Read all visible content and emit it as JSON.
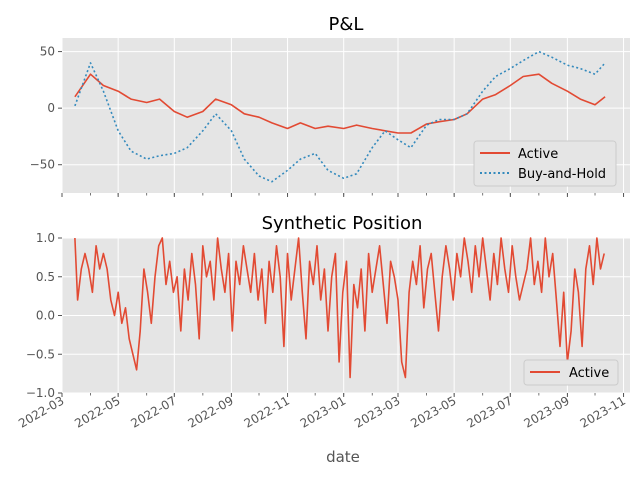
{
  "colors": {
    "active": "#e24a33",
    "buy_and_hold": "#348abd",
    "panel_bg": "#e5e5e5",
    "grid": "#ffffff"
  },
  "chart_data": [
    {
      "type": "line",
      "title": "P&L",
      "xlabel": "",
      "ylabel": "",
      "ylim": [
        -75,
        62
      ],
      "yticks": [
        -50,
        0,
        50
      ],
      "grid": true,
      "legend_position": "lower-right",
      "x": [
        "2022-03-15",
        "2022-04-01",
        "2022-04-15",
        "2022-05-01",
        "2022-05-15",
        "2022-06-01",
        "2022-06-15",
        "2022-07-01",
        "2022-07-15",
        "2022-08-01",
        "2022-08-15",
        "2022-09-01",
        "2022-09-15",
        "2022-10-01",
        "2022-10-15",
        "2022-11-01",
        "2022-11-15",
        "2022-12-01",
        "2022-12-15",
        "2023-01-01",
        "2023-01-15",
        "2023-02-01",
        "2023-02-15",
        "2023-03-01",
        "2023-03-15",
        "2023-04-01",
        "2023-04-15",
        "2023-05-01",
        "2023-05-15",
        "2023-06-01",
        "2023-06-15",
        "2023-07-01",
        "2023-07-15",
        "2023-08-01",
        "2023-08-15",
        "2023-09-01",
        "2023-09-15",
        "2023-10-01",
        "2023-10-12"
      ],
      "series": [
        {
          "name": "Active",
          "style": "solid",
          "values": [
            10,
            30,
            20,
            15,
            8,
            5,
            8,
            -3,
            -8,
            -3,
            8,
            3,
            -5,
            -8,
            -13,
            -18,
            -13,
            -18,
            -16,
            -18,
            -15,
            -18,
            -20,
            -22,
            -22,
            -14,
            -12,
            -10,
            -5,
            8,
            12,
            20,
            28,
            30,
            22,
            15,
            8,
            3,
            10
          ]
        },
        {
          "name": "Buy-and-Hold",
          "style": "dotted",
          "values": [
            2,
            40,
            15,
            -20,
            -38,
            -45,
            -42,
            -40,
            -35,
            -20,
            -5,
            -20,
            -45,
            -60,
            -65,
            -55,
            -45,
            -40,
            -55,
            -62,
            -58,
            -35,
            -20,
            -28,
            -35,
            -15,
            -10,
            -10,
            -5,
            15,
            28,
            35,
            42,
            50,
            45,
            38,
            35,
            30,
            40
          ]
        }
      ]
    },
    {
      "type": "line",
      "title": "Synthetic Position",
      "xlabel": "date",
      "ylabel": "",
      "ylim": [
        -1.0,
        1.0
      ],
      "yticks": [
        -1.0,
        -0.5,
        0.0,
        0.5,
        1.0
      ],
      "xticks": [
        "2022-03",
        "2022-05",
        "2022-07",
        "2022-09",
        "2022-11",
        "2023-01",
        "2023-03",
        "2023-05",
        "2023-07",
        "2023-09",
        "2023-11"
      ],
      "grid": true,
      "legend_position": "lower-right",
      "series": [
        {
          "name": "Active",
          "style": "solid",
          "x": [
            "2022-03-15",
            "2022-03-18",
            "2022-03-22",
            "2022-03-26",
            "2022-03-30",
            "2022-04-03",
            "2022-04-07",
            "2022-04-11",
            "2022-04-15",
            "2022-04-19",
            "2022-04-23",
            "2022-04-27",
            "2022-05-01",
            "2022-05-05",
            "2022-05-09",
            "2022-05-13",
            "2022-05-17",
            "2022-05-21",
            "2022-05-25",
            "2022-05-29",
            "2022-06-02",
            "2022-06-06",
            "2022-06-10",
            "2022-06-14",
            "2022-06-18",
            "2022-06-22",
            "2022-06-26",
            "2022-06-30",
            "2022-07-04",
            "2022-07-08",
            "2022-07-12",
            "2022-07-16",
            "2022-07-20",
            "2022-07-24",
            "2022-07-28",
            "2022-08-01",
            "2022-08-05",
            "2022-08-09",
            "2022-08-13",
            "2022-08-17",
            "2022-08-21",
            "2022-08-25",
            "2022-08-29",
            "2022-09-02",
            "2022-09-06",
            "2022-09-10",
            "2022-09-14",
            "2022-09-18",
            "2022-09-22",
            "2022-09-26",
            "2022-09-30",
            "2022-10-04",
            "2022-10-08",
            "2022-10-12",
            "2022-10-16",
            "2022-10-20",
            "2022-10-24",
            "2022-10-28",
            "2022-11-01",
            "2022-11-05",
            "2022-11-09",
            "2022-11-13",
            "2022-11-17",
            "2022-11-21",
            "2022-11-25",
            "2022-11-29",
            "2022-12-03",
            "2022-12-07",
            "2022-12-11",
            "2022-12-15",
            "2022-12-19",
            "2022-12-23",
            "2022-12-27",
            "2022-12-31",
            "2023-01-04",
            "2023-01-08",
            "2023-01-12",
            "2023-01-16",
            "2023-01-20",
            "2023-01-24",
            "2023-01-28",
            "2023-02-01",
            "2023-02-05",
            "2023-02-09",
            "2023-02-13",
            "2023-02-17",
            "2023-02-21",
            "2023-02-25",
            "2023-03-01",
            "2023-03-05",
            "2023-03-09",
            "2023-03-13",
            "2023-03-17",
            "2023-03-21",
            "2023-03-25",
            "2023-03-29",
            "2023-04-02",
            "2023-04-06",
            "2023-04-10",
            "2023-04-14",
            "2023-04-18",
            "2023-04-22",
            "2023-04-26",
            "2023-04-30",
            "2023-05-04",
            "2023-05-08",
            "2023-05-12",
            "2023-05-16",
            "2023-05-20",
            "2023-05-24",
            "2023-05-28",
            "2023-06-01",
            "2023-06-05",
            "2023-06-09",
            "2023-06-13",
            "2023-06-17",
            "2023-06-21",
            "2023-06-25",
            "2023-06-29",
            "2023-07-03",
            "2023-07-07",
            "2023-07-11",
            "2023-07-15",
            "2023-07-19",
            "2023-07-23",
            "2023-07-27",
            "2023-07-31",
            "2023-08-04",
            "2023-08-08",
            "2023-08-12",
            "2023-08-16",
            "2023-08-20",
            "2023-08-24",
            "2023-08-28",
            "2023-09-01",
            "2023-09-05",
            "2023-09-09",
            "2023-09-13",
            "2023-09-17",
            "2023-09-21",
            "2023-09-25",
            "2023-09-29",
            "2023-10-03",
            "2023-10-07",
            "2023-10-11"
          ],
          "values": [
            1.0,
            0.2,
            0.6,
            0.8,
            0.6,
            0.3,
            0.9,
            0.6,
            0.8,
            0.6,
            0.2,
            0.0,
            0.3,
            -0.1,
            0.1,
            -0.3,
            -0.5,
            -0.7,
            -0.2,
            0.6,
            0.3,
            -0.1,
            0.5,
            0.9,
            1.0,
            0.4,
            0.7,
            0.3,
            0.5,
            -0.2,
            0.6,
            0.2,
            0.8,
            0.4,
            -0.3,
            0.9,
            0.5,
            0.7,
            0.2,
            1.0,
            0.6,
            0.3,
            0.8,
            -0.2,
            0.7,
            0.4,
            0.9,
            0.6,
            0.3,
            0.8,
            0.2,
            0.6,
            -0.1,
            0.7,
            0.3,
            0.9,
            0.5,
            -0.4,
            0.8,
            0.2,
            0.6,
            1.0,
            0.3,
            -0.3,
            0.7,
            0.4,
            0.9,
            0.2,
            0.6,
            -0.2,
            0.5,
            0.8,
            -0.6,
            0.3,
            0.7,
            -0.8,
            0.4,
            0.1,
            0.6,
            -0.2,
            0.8,
            0.3,
            0.6,
            0.9,
            0.4,
            -0.1,
            0.7,
            0.5,
            0.2,
            -0.6,
            -0.8,
            0.3,
            0.7,
            0.4,
            0.9,
            0.1,
            0.6,
            0.8,
            0.3,
            -0.2,
            0.5,
            0.9,
            0.6,
            0.2,
            0.8,
            0.5,
            1.0,
            0.7,
            0.3,
            0.9,
            0.5,
            1.0,
            0.6,
            0.2,
            0.8,
            0.4,
            1.0,
            0.6,
            0.3,
            0.9,
            0.5,
            0.2,
            0.4,
            0.6,
            1.0,
            0.4,
            0.7,
            0.3,
            1.0,
            0.5,
            0.8,
            0.2,
            -0.4,
            0.3,
            -0.6,
            -0.2,
            0.6,
            0.3,
            -0.4,
            0.6,
            0.9,
            0.4,
            1.0,
            0.6,
            0.8
          ]
        }
      ]
    }
  ]
}
